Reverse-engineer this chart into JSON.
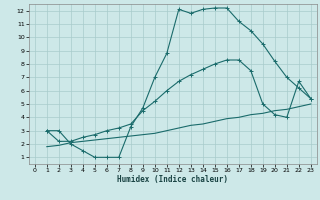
{
  "xlabel": "Humidex (Indice chaleur)",
  "xlim": [
    -0.5,
    23.5
  ],
  "ylim": [
    0.5,
    12.5
  ],
  "xticks": [
    0,
    1,
    2,
    3,
    4,
    5,
    6,
    7,
    8,
    9,
    10,
    11,
    12,
    13,
    14,
    15,
    16,
    17,
    18,
    19,
    20,
    21,
    22,
    23
  ],
  "yticks": [
    1,
    2,
    3,
    4,
    5,
    6,
    7,
    8,
    9,
    10,
    11,
    12
  ],
  "background_color": "#cde8e8",
  "grid_color": "#a8cccc",
  "line_color": "#1a6b6b",
  "curve1_x": [
    1,
    2,
    3,
    4,
    5,
    6,
    7,
    8,
    9,
    10,
    11,
    12,
    13,
    14,
    15,
    16,
    17,
    18,
    19,
    20,
    21,
    22,
    23
  ],
  "curve1_y": [
    3.0,
    3.0,
    2.0,
    1.5,
    1.0,
    1.0,
    1.0,
    3.3,
    4.7,
    7.0,
    8.8,
    12.1,
    11.8,
    12.1,
    12.2,
    12.2,
    11.2,
    10.5,
    9.5,
    8.2,
    7.0,
    6.2,
    5.4
  ],
  "curve2_x": [
    1,
    2,
    3,
    4,
    5,
    6,
    7,
    8,
    9,
    10,
    11,
    12,
    13,
    14,
    15,
    16,
    17,
    18,
    19,
    20,
    21,
    22,
    23
  ],
  "curve2_y": [
    3.0,
    2.2,
    2.2,
    2.5,
    2.7,
    3.0,
    3.2,
    3.5,
    4.5,
    5.2,
    6.0,
    6.7,
    7.2,
    7.6,
    8.0,
    8.3,
    8.3,
    7.5,
    5.0,
    4.2,
    4.0,
    6.7,
    5.4
  ],
  "curve3_x": [
    1,
    2,
    3,
    4,
    5,
    6,
    7,
    8,
    9,
    10,
    11,
    12,
    13,
    14,
    15,
    16,
    17,
    18,
    19,
    20,
    21,
    22,
    23
  ],
  "curve3_y": [
    1.8,
    1.9,
    2.1,
    2.2,
    2.3,
    2.4,
    2.5,
    2.6,
    2.7,
    2.8,
    3.0,
    3.2,
    3.4,
    3.5,
    3.7,
    3.9,
    4.0,
    4.2,
    4.3,
    4.5,
    4.6,
    4.8,
    5.0
  ]
}
